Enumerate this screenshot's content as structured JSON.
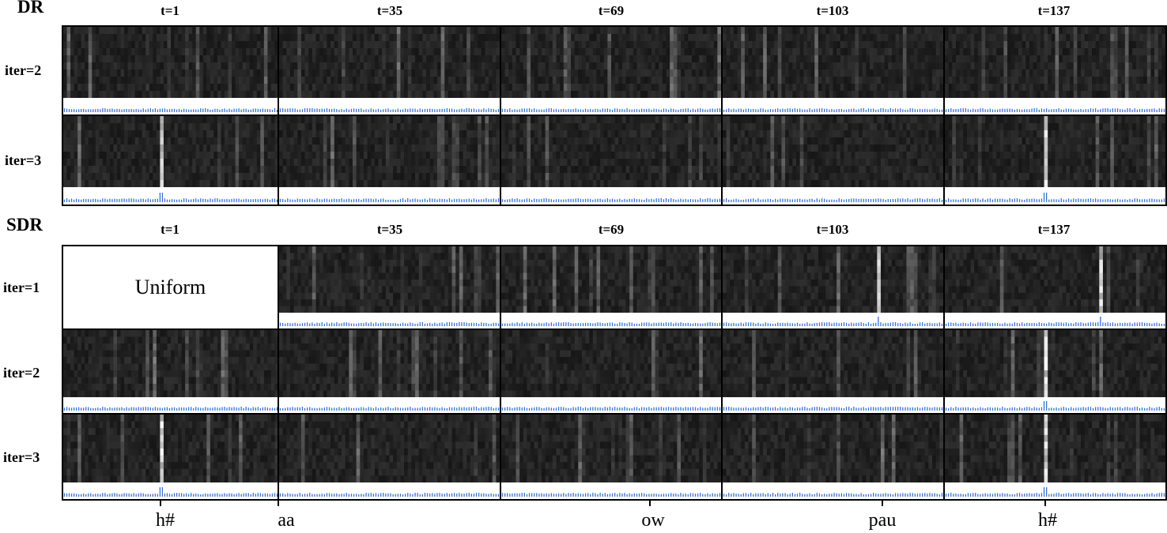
{
  "dr": {
    "title": "DR",
    "col_labels": [
      "t=1",
      "t=35",
      "t=69",
      "t=103",
      "t=137"
    ],
    "row_labels": [
      "iter=2",
      "iter=3"
    ]
  },
  "sdr": {
    "title": "SDR",
    "col_labels": [
      "t=1",
      "t=35",
      "t=69",
      "t=103",
      "t=137"
    ],
    "row_labels": [
      "iter=1",
      "iter=2",
      "iter=3"
    ],
    "uniform_label": "Uniform"
  },
  "phones": [
    "h#",
    "aa",
    "ow",
    "pau",
    "h#"
  ],
  "colors": {
    "bar_line": "#3a6fd0",
    "heatmap_bg": "#1a1a1a"
  }
}
